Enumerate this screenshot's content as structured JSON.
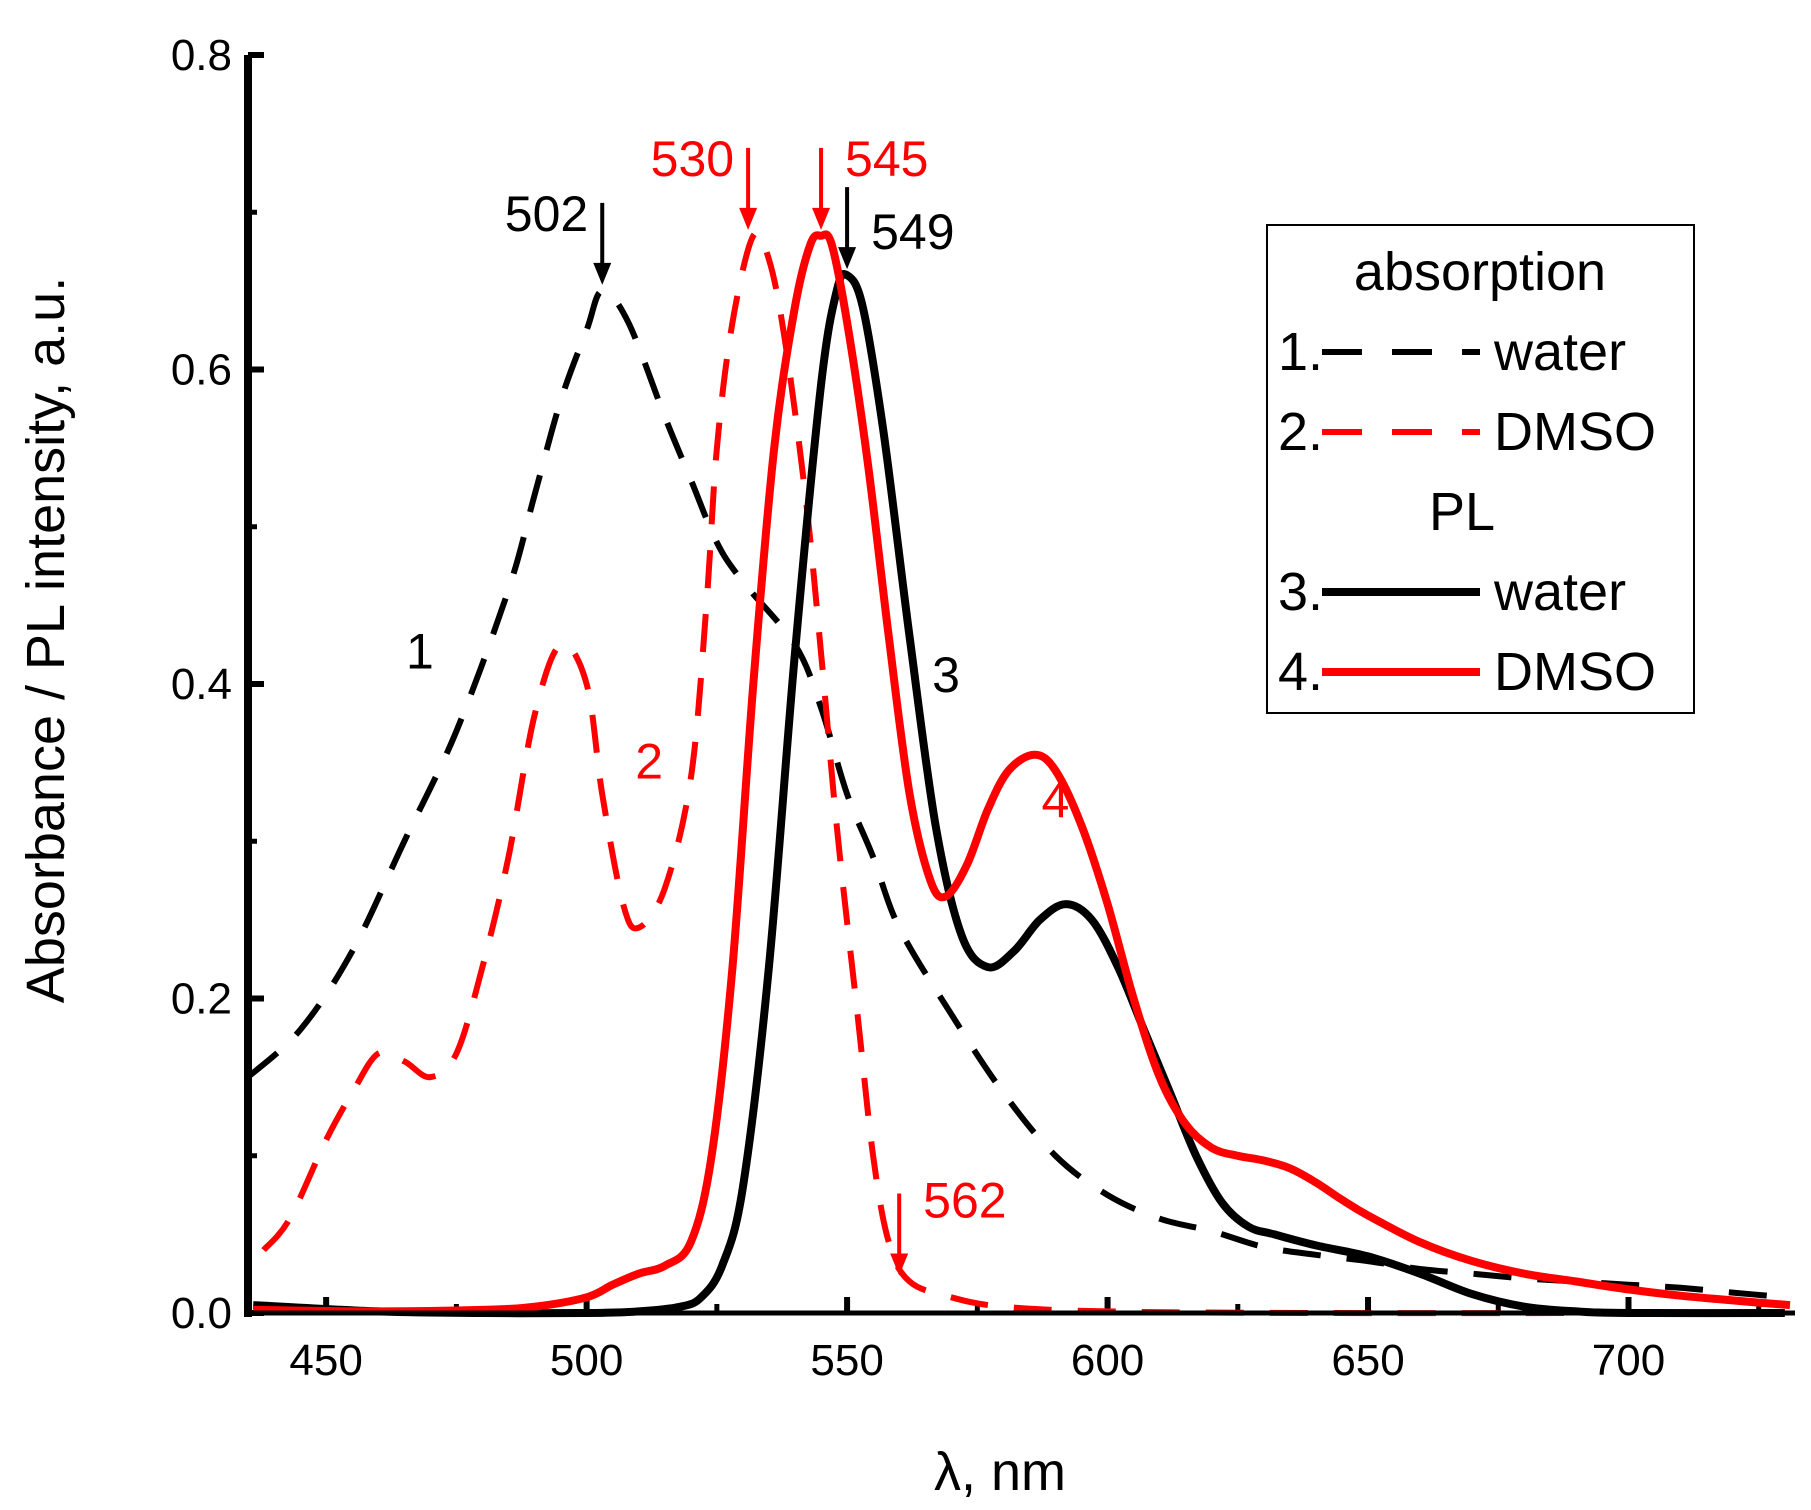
{
  "chart_data": {
    "type": "line",
    "xlabel": "λ, nm",
    "ylabel": "Absorbance / PL intensity, a.u.",
    "xlim": [
      435,
      731
    ],
    "ylim": [
      0,
      0.8
    ],
    "xticks": [
      450,
      500,
      550,
      600,
      650,
      700
    ],
    "xtick_labels": [
      "450",
      "500",
      "550",
      "600",
      "650",
      "700"
    ],
    "yticks": [
      0.0,
      0.2,
      0.4,
      0.6,
      0.8
    ],
    "ytick_labels": [
      "0.0",
      "0.2",
      "0.4",
      "0.6",
      "0.8"
    ],
    "grid": false,
    "legend": {
      "position": "top-right",
      "group1_title": "absorption",
      "group2_title": "PL",
      "entries": [
        {
          "num": "1.",
          "label": "water",
          "series": "s1"
        },
        {
          "num": "2.",
          "label": "DMSO",
          "series": "s2"
        },
        {
          "num": "3.",
          "label": "water",
          "series": "s3"
        },
        {
          "num": "4.",
          "label": "DMSO",
          "series": "s4"
        }
      ]
    },
    "series": [
      {
        "id": "s1",
        "name": "1. water (absorption)",
        "color": "#000000",
        "dash": true,
        "points": [
          [
            435,
            0.15
          ],
          [
            445,
            0.18
          ],
          [
            455,
            0.23
          ],
          [
            465,
            0.3
          ],
          [
            475,
            0.37
          ],
          [
            485,
            0.46
          ],
          [
            490,
            0.52
          ],
          [
            495,
            0.58
          ],
          [
            500,
            0.625
          ],
          [
            503,
            0.65
          ],
          [
            508,
            0.63
          ],
          [
            515,
            0.57
          ],
          [
            520,
            0.53
          ],
          [
            525,
            0.49
          ],
          [
            530,
            0.465
          ],
          [
            540,
            0.425
          ],
          [
            545,
            0.385
          ],
          [
            550,
            0.33
          ],
          [
            555,
            0.29
          ],
          [
            560,
            0.245
          ],
          [
            570,
            0.19
          ],
          [
            580,
            0.14
          ],
          [
            590,
            0.1
          ],
          [
            600,
            0.075
          ],
          [
            610,
            0.06
          ],
          [
            620,
            0.052
          ],
          [
            630,
            0.042
          ],
          [
            640,
            0.037
          ],
          [
            650,
            0.033
          ],
          [
            660,
            0.028
          ],
          [
            670,
            0.025
          ],
          [
            680,
            0.022
          ],
          [
            690,
            0.02
          ],
          [
            700,
            0.018
          ],
          [
            710,
            0.016
          ],
          [
            720,
            0.013
          ],
          [
            730,
            0.01
          ]
        ]
      },
      {
        "id": "s2",
        "name": "2. DMSO (absorption)",
        "color": "#ff0000",
        "dash": true,
        "points": [
          [
            438,
            0.04
          ],
          [
            443,
            0.06
          ],
          [
            450,
            0.11
          ],
          [
            455,
            0.14
          ],
          [
            460,
            0.165
          ],
          [
            465,
            0.16
          ],
          [
            470,
            0.15
          ],
          [
            475,
            0.165
          ],
          [
            480,
            0.22
          ],
          [
            485,
            0.29
          ],
          [
            490,
            0.38
          ],
          [
            495,
            0.425
          ],
          [
            500,
            0.4
          ],
          [
            503,
            0.33
          ],
          [
            507,
            0.26
          ],
          [
            510,
            0.245
          ],
          [
            515,
            0.27
          ],
          [
            520,
            0.34
          ],
          [
            523,
            0.45
          ],
          [
            525,
            0.55
          ],
          [
            528,
            0.63
          ],
          [
            532,
            0.685
          ],
          [
            535,
            0.67
          ],
          [
            538,
            0.62
          ],
          [
            542,
            0.52
          ],
          [
            545,
            0.42
          ],
          [
            548,
            0.31
          ],
          [
            552,
            0.19
          ],
          [
            555,
            0.1
          ],
          [
            558,
            0.045
          ],
          [
            562,
            0.02
          ],
          [
            570,
            0.01
          ],
          [
            580,
            0.004
          ],
          [
            600,
            0.001
          ],
          [
            640,
            0
          ],
          [
            700,
            0
          ],
          [
            730,
            0
          ]
        ]
      },
      {
        "id": "s3",
        "name": "3. water (PL)",
        "color": "#000000",
        "dash": false,
        "points": [
          [
            436,
            0.005
          ],
          [
            460,
            0.001
          ],
          [
            480,
            0.0
          ],
          [
            500,
            0.0
          ],
          [
            510,
            0.001
          ],
          [
            518,
            0.004
          ],
          [
            522,
            0.01
          ],
          [
            526,
            0.03
          ],
          [
            530,
            0.08
          ],
          [
            535,
            0.22
          ],
          [
            540,
            0.42
          ],
          [
            545,
            0.59
          ],
          [
            548,
            0.65
          ],
          [
            550,
            0.66
          ],
          [
            553,
            0.64
          ],
          [
            557,
            0.56
          ],
          [
            562,
            0.43
          ],
          [
            567,
            0.31
          ],
          [
            572,
            0.24
          ],
          [
            577,
            0.22
          ],
          [
            582,
            0.23
          ],
          [
            587,
            0.25
          ],
          [
            592,
            0.26
          ],
          [
            597,
            0.25
          ],
          [
            602,
            0.22
          ],
          [
            607,
            0.18
          ],
          [
            612,
            0.14
          ],
          [
            617,
            0.1
          ],
          [
            622,
            0.07
          ],
          [
            627,
            0.055
          ],
          [
            632,
            0.05
          ],
          [
            640,
            0.043
          ],
          [
            650,
            0.036
          ],
          [
            660,
            0.025
          ],
          [
            670,
            0.012
          ],
          [
            680,
            0.004
          ],
          [
            690,
            0.001
          ],
          [
            700,
            0
          ],
          [
            730,
            0
          ]
        ]
      },
      {
        "id": "s4",
        "name": "4. DMSO (PL)",
        "color": "#ff0000",
        "dash": false,
        "points": [
          [
            436,
            0.002
          ],
          [
            460,
            0.001
          ],
          [
            480,
            0.002
          ],
          [
            490,
            0.004
          ],
          [
            500,
            0.01
          ],
          [
            505,
            0.018
          ],
          [
            510,
            0.025
          ],
          [
            515,
            0.03
          ],
          [
            520,
            0.045
          ],
          [
            524,
            0.1
          ],
          [
            528,
            0.22
          ],
          [
            532,
            0.4
          ],
          [
            536,
            0.55
          ],
          [
            540,
            0.64
          ],
          [
            543,
            0.68
          ],
          [
            545,
            0.685
          ],
          [
            547,
            0.68
          ],
          [
            550,
            0.63
          ],
          [
            554,
            0.54
          ],
          [
            558,
            0.43
          ],
          [
            562,
            0.33
          ],
          [
            566,
            0.275
          ],
          [
            569,
            0.265
          ],
          [
            573,
            0.285
          ],
          [
            577,
            0.32
          ],
          [
            581,
            0.345
          ],
          [
            586,
            0.355
          ],
          [
            590,
            0.345
          ],
          [
            595,
            0.31
          ],
          [
            600,
            0.26
          ],
          [
            605,
            0.2
          ],
          [
            610,
            0.15
          ],
          [
            615,
            0.12
          ],
          [
            620,
            0.105
          ],
          [
            625,
            0.1
          ],
          [
            630,
            0.097
          ],
          [
            635,
            0.092
          ],
          [
            640,
            0.083
          ],
          [
            645,
            0.072
          ],
          [
            650,
            0.062
          ],
          [
            660,
            0.045
          ],
          [
            670,
            0.033
          ],
          [
            680,
            0.025
          ],
          [
            690,
            0.02
          ],
          [
            700,
            0.015
          ],
          [
            710,
            0.011
          ],
          [
            720,
            0.008
          ],
          [
            731,
            0.005
          ]
        ]
      }
    ],
    "annotations": [
      {
        "text": "502",
        "x": 503,
        "y": 0.65,
        "color": "#000000",
        "arrow": true
      },
      {
        "text": "530",
        "x": 531,
        "y": 0.685,
        "color": "#ff0000",
        "arrow": true
      },
      {
        "text": "545",
        "x": 545,
        "y": 0.685,
        "color": "#ff0000",
        "arrow": true
      },
      {
        "text": "549",
        "x": 550,
        "y": 0.66,
        "color": "#000000",
        "arrow": true
      },
      {
        "text": "562",
        "x": 560,
        "y": 0.02,
        "color": "#ff0000",
        "arrow": true
      },
      {
        "text": "1",
        "x": 468,
        "y": 0.41,
        "color": "#000000",
        "arrow": false
      },
      {
        "text": "2",
        "x": 512,
        "y": 0.34,
        "color": "#ff0000",
        "arrow": false
      },
      {
        "text": "3",
        "x": 569,
        "y": 0.395,
        "color": "#000000",
        "arrow": false
      },
      {
        "text": "4",
        "x": 590,
        "y": 0.315,
        "color": "#ff0000",
        "arrow": false
      }
    ]
  }
}
